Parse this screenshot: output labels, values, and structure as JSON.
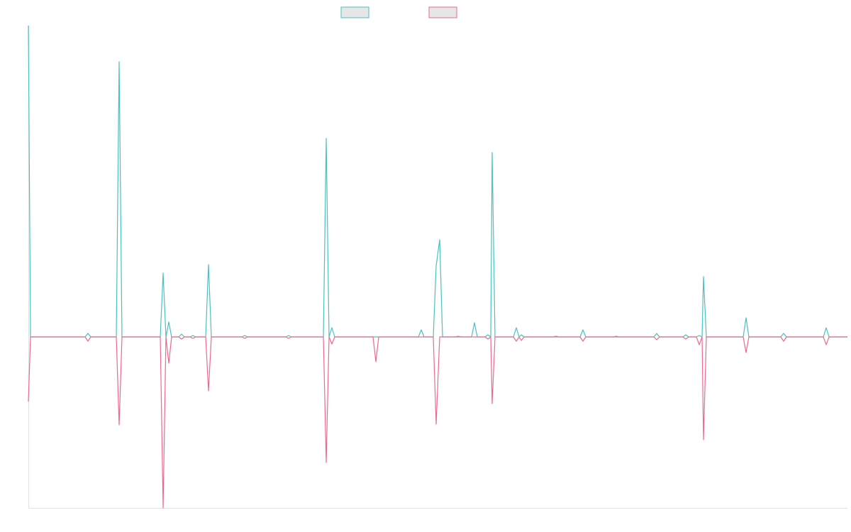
{
  "chart_data": {
    "type": "line",
    "x": [
      0,
      3,
      80,
      84,
      88,
      124,
      128,
      132,
      186,
      190,
      194,
      198,
      202,
      212,
      216,
      220,
      228,
      232,
      236,
      250,
      254,
      258,
      301,
      305,
      309,
      363,
      367,
      371,
      416,
      420,
      424,
      428,
      432,
      486,
      490,
      494,
      550,
      554,
      558,
      571,
      575,
      580,
      584,
      602,
      606,
      610,
      625,
      629,
      633,
      644,
      648,
      652,
      654,
      658,
      684,
      688,
      692,
      695,
      699,
      740,
      744,
      748,
      778,
      782,
      786,
      825,
      829,
      833,
      882,
      886,
      890,
      923,
      927,
      931,
      942,
      946,
      950,
      952,
      956,
      1008,
      1012,
      1016,
      1061,
      1065,
      1069,
      1121,
      1125,
      1129,
      1155
    ],
    "series": [
      {
        "color": "#4bc0c0",
        "values": [
          439,
          0,
          0,
          5,
          0,
          0,
          388,
          0,
          0,
          90,
          0,
          21,
          0,
          0,
          4,
          0,
          0,
          2,
          0,
          0,
          102,
          0,
          0,
          2,
          0,
          0,
          2,
          0,
          0,
          280,
          0,
          13,
          0,
          0,
          0,
          0,
          0,
          10,
          0,
          0,
          100,
          137,
          0,
          0,
          1,
          0,
          0,
          20,
          0,
          0,
          3,
          0,
          260,
          0,
          0,
          13,
          0,
          3,
          0,
          0,
          1,
          0,
          0,
          10,
          0,
          0,
          1,
          0,
          0,
          5,
          0,
          0,
          3,
          0,
          0,
          2,
          0,
          85,
          0,
          0,
          27,
          0,
          0,
          5,
          0,
          0,
          13,
          0,
          0
        ]
      },
      {
        "color": "#ec6a8c",
        "values": [
          -91,
          0,
          0,
          -6,
          0,
          0,
          -124,
          0,
          0,
          -241,
          0,
          -37,
          0,
          0,
          -3,
          0,
          0,
          -2,
          0,
          0,
          -76,
          0,
          0,
          -2,
          0,
          0,
          -2,
          0,
          0,
          -177,
          0,
          -10,
          0,
          0,
          -35,
          0,
          0,
          0,
          0,
          0,
          -123,
          0,
          0,
          0,
          0,
          0,
          0,
          0,
          0,
          0,
          -3,
          0,
          -94,
          0,
          0,
          -6,
          0,
          -5,
          0,
          0,
          0,
          0,
          0,
          -6,
          0,
          0,
          0,
          0,
          0,
          -4,
          0,
          0,
          -3,
          0,
          0,
          -11,
          0,
          -145,
          0,
          0,
          -22,
          0,
          0,
          -6,
          0,
          0,
          -11,
          0,
          0
        ]
      }
    ],
    "xlim": [
      0,
      1155
    ],
    "ylim": [
      -241,
      439
    ]
  }
}
